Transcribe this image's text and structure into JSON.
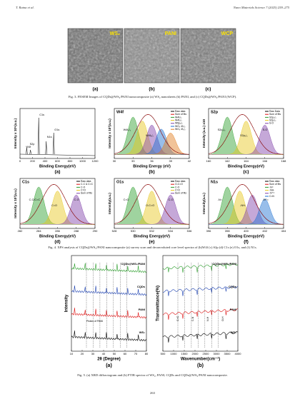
{
  "header": {
    "left": "T. Ratna et al.",
    "right": "Nano Materials Science 7 (2025) 259–275"
  },
  "fig3": {
    "panels": [
      {
        "tag": "WS₂",
        "letter": "(a)"
      },
      {
        "tag": "PANI",
        "letter": "(b)"
      },
      {
        "tag": "WCP",
        "letter": "(c)"
      }
    ],
    "caption": "Fig. 3. FESEM Images of CQDs@WS₂/PANI nanocomposite (a) WS₂ nanosheets (b) PANI, and (c) CQDs@WS₂/PANI (WCP)."
  },
  "fig4": {
    "panels": [
      {
        "letter": "(a)",
        "title": "",
        "ylabel": "Intensity x 10⁵(a.u.)",
        "xlabel": "Binding Energy(eV)",
        "xticks": [
          "0",
          "200",
          "400",
          "600",
          "800",
          "1000",
          "1200"
        ],
        "legend": [],
        "notes": [
          "W4f",
          "S2p",
          "C1s",
          "N1s",
          "O1s"
        ]
      },
      {
        "letter": "(b)",
        "title": "W4f",
        "ylabel": "Intensity x 10³(a.u.)",
        "xlabel": "Binding Energy (eV)",
        "xticks": [
          "30",
          "33",
          "36",
          "39",
          "42"
        ],
        "legend": [
          "Raw data",
          "Sum of fits",
          "W4f₇/₂",
          "W4f₅/₂",
          "W5p₃/₂",
          "WO₃ 4f₇/₂",
          "WO₃ 4f₅/₂"
        ],
        "notes": [
          "W4f₇/₂",
          "W4f₅/₂"
        ]
      },
      {
        "letter": "(c)",
        "title": "S2p",
        "ylabel": "Intensity (a.u.) x10",
        "xlabel": "Binding Energy(eV)",
        "xticks": [
          "160",
          "162",
          "164",
          "166",
          "168"
        ],
        "legend": [
          "Raw Data",
          "Sum of fits",
          "S2p₃/₂",
          "S2p₁/₂",
          "S-O"
        ],
        "notes": [
          "S2p₃/₂",
          "S2p₁/₂",
          "S-O"
        ]
      },
      {
        "letter": "(d)",
        "title": "C1s",
        "ylabel": "Intensity x 10³(a.u.)",
        "xlabel": "Binding Energy(eV)",
        "xticks": [
          "282",
          "284",
          "286",
          "288",
          "290"
        ],
        "legend": [
          "Raw data",
          "C-C & C=C",
          "C-O",
          "C=O",
          "Sum of fits"
        ],
        "notes": [
          "C-C/C=C",
          "C=O",
          "C-O"
        ]
      },
      {
        "letter": "(e)",
        "title": "O1s",
        "ylabel": "Intensity(a.u.)",
        "xlabel": "Binding Energy(eV)",
        "xticks": [
          "528",
          "530",
          "532",
          "534",
          "536"
        ],
        "legend": [
          "Raw data",
          "O-C=O",
          "C-O",
          "C=O",
          "Sum of fits"
        ],
        "notes": [
          "C=O",
          "O-C=O",
          "C-O"
        ]
      },
      {
        "letter": "(f)",
        "title": "N1s",
        "ylabel": "Intensity(a.u.)",
        "xlabel": "Binding Energy(eV)",
        "xticks": [
          "396",
          "398",
          "400",
          "402",
          "404"
        ],
        "legend": [
          "Raw data",
          "Sum of fits",
          "-N=",
          "-NH-",
          "-N⁺=",
          "C=N"
        ],
        "notes": [
          "-N=",
          "-NH-",
          "-N⁺="
        ]
      }
    ],
    "caption": "Fig. 4. XPS analysis of CQDs@WS₂/PANI nanocomposite (a) survey scan and deconvoluted core level spectra of (b)W4f (c) S2p (d) C1s (e) O1s, and (f) N1s."
  },
  "fig5": {
    "panels": [
      {
        "letter": "(a)",
        "ylabel": "Intensity",
        "xlabel": "2θ (Degree)",
        "xticks": [
          "10",
          "20",
          "30",
          "40",
          "50",
          "60",
          "70",
          "80"
        ],
        "series": [
          "CQDs@WS₂/PANI",
          "CQDs",
          "PANI",
          "WS₂"
        ],
        "notes": [
          "Peaks of PANI"
        ]
      },
      {
        "letter": "(b)",
        "ylabel": "Transmittance(%)",
        "xlabel": "Wavenumber(cm⁻¹)",
        "xticks": [
          "500",
          "1000",
          "1500",
          "2000",
          "2500",
          "3000",
          "3500",
          "4000"
        ],
        "series": [
          "CQDs@WS₂/PANI",
          "CQDs",
          "PANI",
          "WS₂"
        ],
        "notes": [
          "C=C",
          "C-N",
          "N-H",
          "O-H"
        ]
      }
    ],
    "caption": "Fig. 5. (a) XRD diffractogram and (b) FTIR spectra of WS₂, PANI, CQDs and CQDs@WS₂/PANI nanocomposite."
  },
  "page_number": "263"
}
